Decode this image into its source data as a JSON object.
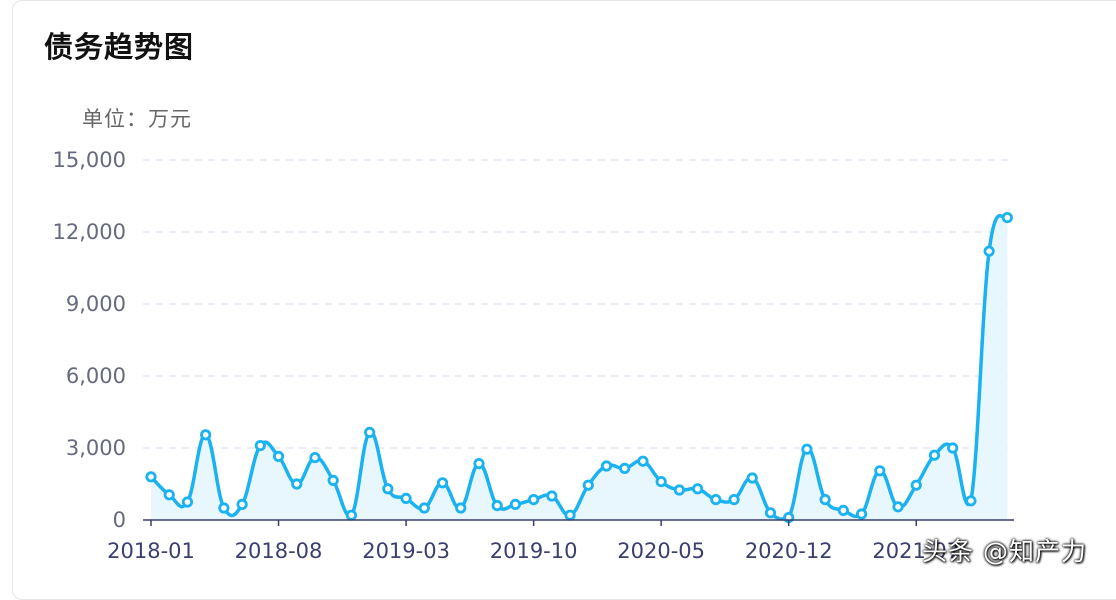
{
  "card": {
    "title": "债务趋势图",
    "unit_label": "单位：万元"
  },
  "watermark": "头条 @知产力",
  "chart_data": {
    "type": "area",
    "title": "债务趋势图",
    "ylabel": "单位：万元",
    "xlabel": "",
    "ylim": [
      0,
      15000
    ],
    "y_ticks": [
      "0",
      "3,000",
      "6,000",
      "9,000",
      "12,000",
      "15,000"
    ],
    "y_tick_values": [
      0,
      3000,
      6000,
      9000,
      12000,
      15000
    ],
    "x_tick_labels": [
      "2018-01",
      "2018-08",
      "2019-03",
      "2019-10",
      "2020-05",
      "2020-12",
      "2021-07"
    ],
    "x_tick_indices": [
      0,
      7,
      14,
      21,
      28,
      35,
      42
    ],
    "grid": true,
    "smooth": true,
    "line_color": "#1ab2f0",
    "area_color": "#e8f7fe",
    "grid_color": "#e4e6f3",
    "axis_color": "#3a3f6e",
    "categories": [
      "2018-01",
      "2018-02",
      "2018-03",
      "2018-04",
      "2018-05",
      "2018-06",
      "2018-07",
      "2018-08",
      "2018-09",
      "2018-10",
      "2018-11",
      "2018-12",
      "2019-01",
      "2019-02",
      "2019-03",
      "2019-04",
      "2019-05",
      "2019-06",
      "2019-07",
      "2019-08",
      "2019-09",
      "2019-10",
      "2019-11",
      "2019-12",
      "2020-01",
      "2020-02",
      "2020-03",
      "2020-04",
      "2020-05",
      "2020-06",
      "2020-07",
      "2020-08",
      "2020-09",
      "2020-10",
      "2020-11",
      "2020-12",
      "2021-01",
      "2021-02",
      "2021-03",
      "2021-04",
      "2021-05",
      "2021-06",
      "2021-07",
      "2021-08",
      "2021-09",
      "2021-10",
      "2021-11",
      "2021-12"
    ],
    "values": [
      1800,
      1050,
      750,
      3550,
      500,
      650,
      3100,
      2650,
      1500,
      2600,
      1650,
      200,
      3650,
      1300,
      900,
      500,
      1550,
      500,
      2350,
      600,
      650,
      850,
      1000,
      200,
      1450,
      2250,
      2150,
      2450,
      1600,
      1250,
      1300,
      850,
      850,
      1750,
      300,
      100,
      2950,
      850,
      400,
      250,
      2050,
      550,
      1450,
      2700,
      3000,
      800,
      11200,
      12600
    ]
  }
}
